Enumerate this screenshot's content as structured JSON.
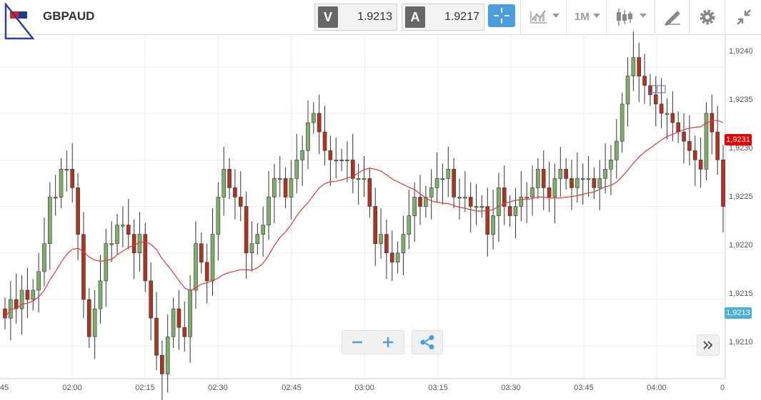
{
  "toolbar": {
    "symbol": "GBPAUD",
    "bid_tag": "V",
    "bid_value": "1.9213",
    "ask_tag": "A",
    "ask_value": "1.9217",
    "timeframe": "1M"
  },
  "chart_data": {
    "type": "candlestick",
    "x_tick_labels": [
      "45",
      "02:00",
      "02:15",
      "02:30",
      "02:45",
      "03:00",
      "03:15",
      "03:30",
      "03:45",
      "04:00",
      "0"
    ],
    "y_tick_labels": [
      "1,9240",
      "1,9235",
      "1,9230",
      "1,9225",
      "1,9220",
      "1,9215",
      "1,9210"
    ],
    "ylim": [
      1.92065,
      1.92435
    ],
    "current_price_label": "1,9231",
    "current_price": 1.92308,
    "bid_price_label": "1,9213",
    "bid_price": 1.9213,
    "close_series": [
      1.9213,
      1.9215,
      1.9214,
      1.9216,
      1.9215,
      1.9216,
      1.9218,
      1.9221,
      1.9226,
      1.9226,
      1.9229,
      1.9229,
      1.9227,
      1.9222,
      1.9215,
      1.9211,
      1.9214,
      1.9217,
      1.9221,
      1.9221,
      1.9223,
      1.9223,
      1.9222,
      1.922,
      1.9222,
      1.9217,
      1.9213,
      1.9209,
      1.9207,
      1.9211,
      1.9214,
      1.9212,
      1.9211,
      1.9216,
      1.9221,
      1.9219,
      1.9217,
      1.9222,
      1.9226,
      1.9229,
      1.9227,
      1.9226,
      1.9225,
      1.922,
      1.9221,
      1.9222,
      1.9223,
      1.9226,
      1.9228,
      1.9228,
      1.9226,
      1.9228,
      1.923,
      1.9231,
      1.9234,
      1.9235,
      1.9233,
      1.9231,
      1.923,
      1.923,
      1.923,
      1.923,
      1.9228,
      1.9228,
      1.9228,
      1.9225,
      1.9221,
      1.9222,
      1.922,
      1.9219,
      1.922,
      1.9222,
      1.9224,
      1.9226,
      1.9225,
      1.9226,
      1.9227,
      1.9228,
      1.9228,
      1.9229,
      1.9226,
      1.9226,
      1.9226,
      1.9225,
      1.9225,
      1.9225,
      1.9222,
      1.9224,
      1.9227,
      1.9225,
      1.9224,
      1.9225,
      1.9226,
      1.9226,
      1.9227,
      1.9229,
      1.9227,
      1.9226,
      1.9228,
      1.9229,
      1.9228,
      1.9227,
      1.9228,
      1.9228,
      1.9228,
      1.9227,
      1.9228,
      1.9229,
      1.923,
      1.9232,
      1.9236,
      1.9239,
      1.9241,
      1.9239,
      1.9238,
      1.9237,
      1.9236,
      1.9235,
      1.9235,
      1.9234,
      1.9233,
      1.9232,
      1.9231,
      1.923,
      1.9229,
      1.9235,
      1.9233,
      1.923,
      1.9225
    ]
  }
}
